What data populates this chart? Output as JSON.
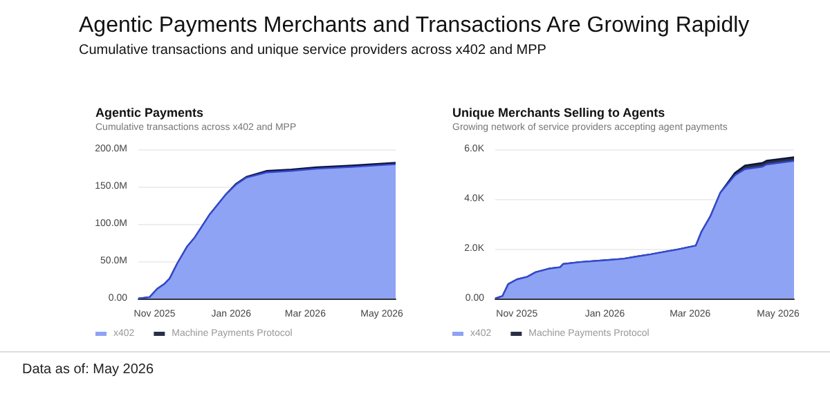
{
  "chart_data": [
    {
      "type": "other",
      "title": "Agentic Payments Merchants and Transactions Are Growing Rapidly",
      "subtitle": "Cumulative transactions and unique service providers across x402 and MPP",
      "annotations": [
        "Data as of:  May 2026"
      ]
    },
    {
      "type": "area",
      "stacked": true,
      "title": "Agentic Payments",
      "subtitle": "Cumulative transactions across x402 and MPP",
      "x": [
        "2025-10-19",
        "2025-10-28",
        "2025-11-03",
        "2025-11-09",
        "2025-11-13",
        "2025-11-19",
        "2025-11-27",
        "2025-12-03",
        "2025-12-15",
        "2025-12-28",
        "2026-01-05",
        "2026-01-13",
        "2026-01-29",
        "2026-02-18",
        "2026-03-10",
        "2026-04-04",
        "2026-05-12"
      ],
      "series": [
        {
          "name": "x402",
          "color": "#8fa3f4",
          "values": [
            0,
            2,
            13,
            20,
            27,
            47,
            70,
            82,
            113,
            140,
            153,
            162,
            169,
            171,
            174,
            176,
            180
          ]
        },
        {
          "name": "Machine Payments Protocol",
          "color": "#2b2f45",
          "values": [
            0,
            0,
            0,
            0,
            0,
            0,
            0,
            0,
            0,
            0,
            1,
            1,
            2,
            2,
            2,
            2,
            2
          ]
        }
      ],
      "xlim": [
        "2025-10-19",
        "2026-05-12"
      ],
      "xticks": [
        {
          "value": "2025-11-01",
          "label": "Nov 2025"
        },
        {
          "value": "2026-01-01",
          "label": "Jan 2026"
        },
        {
          "value": "2026-03-01",
          "label": "Mar 2026"
        },
        {
          "value": "2026-05-01",
          "label": "May 2026"
        }
      ],
      "ylim": [
        0,
        200
      ],
      "yticks": [
        {
          "value": 0,
          "label": "0.00"
        },
        {
          "value": 50,
          "label": "50.0M"
        },
        {
          "value": 100,
          "label": "100.0M"
        },
        {
          "value": 150,
          "label": "150.0M"
        },
        {
          "value": 200,
          "label": "200.0M"
        }
      ],
      "grid": "y",
      "legend": "bottom left",
      "marker": "none"
    },
    {
      "type": "area",
      "stacked": true,
      "title": "Unique Merchants Selling to Agents",
      "subtitle": "Growing network of service providers accepting agent payments",
      "x": [
        "2025-10-17",
        "2025-10-22",
        "2025-10-26",
        "2025-11-01",
        "2025-11-08",
        "2025-11-14",
        "2025-11-23",
        "2025-12-01",
        "2025-12-03",
        "2025-12-15",
        "2026-01-03",
        "2026-01-14",
        "2026-01-22",
        "2026-02-02",
        "2026-02-13",
        "2026-02-20",
        "2026-03-05",
        "2026-03-09",
        "2026-03-15",
        "2026-03-22",
        "2026-04-01",
        "2026-04-08",
        "2026-04-20",
        "2026-04-23",
        "2026-05-12"
      ],
      "series": [
        {
          "name": "x402",
          "color": "#8fa3f4",
          "values": [
            0,
            0.1,
            0.58,
            0.77,
            0.87,
            1.06,
            1.2,
            1.26,
            1.39,
            1.47,
            1.55,
            1.6,
            1.68,
            1.78,
            1.9,
            1.97,
            2.13,
            2.7,
            3.3,
            4.26,
            4.95,
            5.2,
            5.3,
            5.39,
            5.53
          ]
        },
        {
          "name": "Machine Payments Protocol",
          "color": "#2b2f45",
          "values": [
            0,
            0,
            0,
            0,
            0,
            0,
            0,
            0,
            0,
            0,
            0,
            0,
            0,
            0,
            0,
            0,
            0,
            0,
            0,
            0,
            0.1,
            0.15,
            0.15,
            0.15,
            0.15
          ]
        }
      ],
      "xlim": [
        "2025-10-17",
        "2026-05-12"
      ],
      "xticks": [
        {
          "value": "2025-11-01",
          "label": "Nov 2025"
        },
        {
          "value": "2026-01-01",
          "label": "Jan 2026"
        },
        {
          "value": "2026-03-01",
          "label": "Mar 2026"
        },
        {
          "value": "2026-05-01",
          "label": "May 2026"
        }
      ],
      "ylim": [
        0,
        6
      ],
      "yticks": [
        {
          "value": 0,
          "label": "0.00"
        },
        {
          "value": 2,
          "label": "2.0K"
        },
        {
          "value": 4,
          "label": "4.0K"
        },
        {
          "value": 6,
          "label": "6.0K"
        }
      ],
      "grid": "y",
      "legend": "bottom left",
      "marker": "none"
    }
  ]
}
